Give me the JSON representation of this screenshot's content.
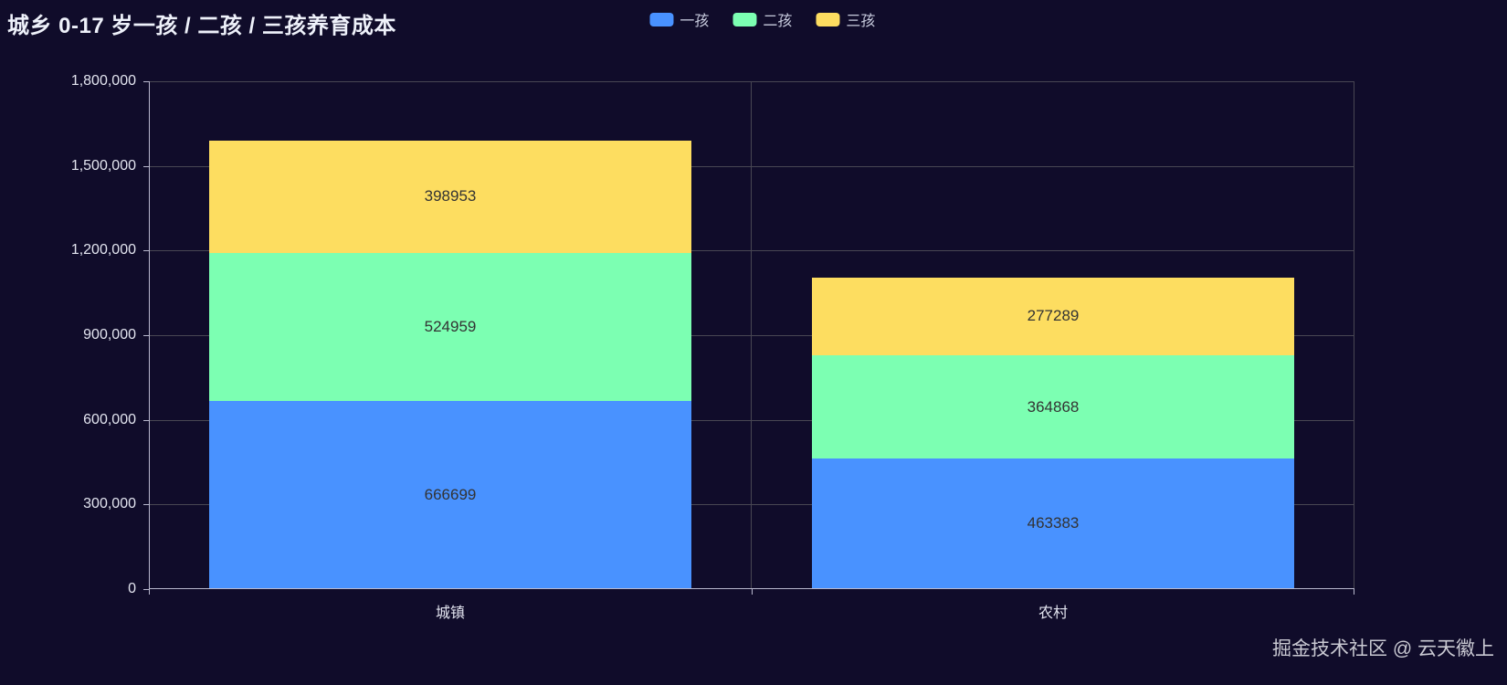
{
  "header": {
    "title": "城乡 0-17 岁一孩 / 二孩 / 三孩养育成本"
  },
  "footer": {
    "watermark": "掘金技术社区 @ 云天徽上"
  },
  "colors": {
    "background": "#100c2a",
    "title_text": "#eef1fa",
    "legend_text": "#c7cbdd",
    "axis_label": "#e3e5f0",
    "axis_line": "#b9b8ce",
    "grid_line": "#484753",
    "bar_label": "#333333",
    "watermark_text": "#c9c9d2"
  },
  "chart_data": {
    "type": "bar",
    "stacked": true,
    "title": "城乡 0-17 岁一孩 / 二孩 / 三孩养育成本",
    "categories": [
      "城镇",
      "农村"
    ],
    "series": [
      {
        "name": "一孩",
        "color": "#4992ff",
        "values": [
          666699,
          463383
        ]
      },
      {
        "name": "二孩",
        "color": "#7cffb2",
        "values": [
          524959,
          364868
        ]
      },
      {
        "name": "三孩",
        "color": "#fddd60",
        "values": [
          398953,
          277289
        ]
      }
    ],
    "xlabel": "",
    "ylabel": "",
    "ylim": [
      0,
      1800000
    ],
    "y_interval": 300000,
    "y_ticks": [
      {
        "value": 0,
        "label": "0"
      },
      {
        "value": 300000,
        "label": "300,000"
      },
      {
        "value": 600000,
        "label": "600,000"
      },
      {
        "value": 900000,
        "label": "900,000"
      },
      {
        "value": 1200000,
        "label": "1,200,000"
      },
      {
        "value": 1500000,
        "label": "1,500,000"
      },
      {
        "value": 1800000,
        "label": "1,800,000"
      }
    ],
    "legend_position": "top-center",
    "grid": true,
    "bar_value_labels_inside": true
  }
}
